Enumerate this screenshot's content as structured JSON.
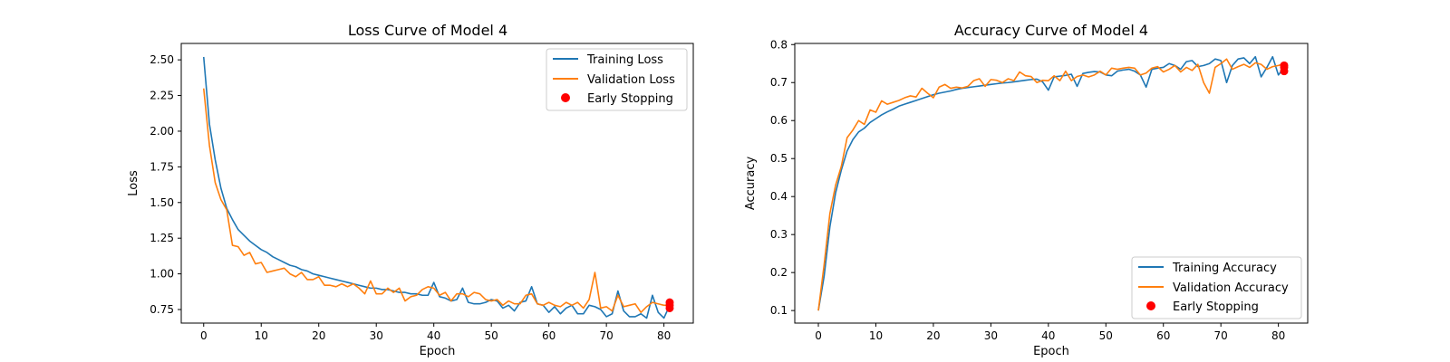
{
  "chart_data": [
    {
      "type": "line",
      "title": "Loss Curve of Model 4",
      "xlabel": "Epoch",
      "ylabel": "Loss",
      "xlim": [
        -3.9,
        85.1
      ],
      "ylim": [
        0.655,
        2.615
      ],
      "xticks": [
        0,
        10,
        20,
        30,
        40,
        50,
        60,
        70,
        80
      ],
      "xtick_labels": [
        "0",
        "10",
        "20",
        "30",
        "40",
        "50",
        "60",
        "70",
        "80"
      ],
      "yticks": [
        0.75,
        1.0,
        1.25,
        1.5,
        1.75,
        2.0,
        2.25,
        2.5
      ],
      "ytick_labels": [
        "0.75",
        "1.00",
        "1.25",
        "1.50",
        "1.75",
        "2.00",
        "2.25",
        "2.50"
      ],
      "legend_position": "top-right",
      "series": [
        {
          "name": "Training Loss",
          "color": "#1f77b4",
          "values": [
            2.52,
            2.05,
            1.8,
            1.6,
            1.46,
            1.38,
            1.31,
            1.27,
            1.23,
            1.2,
            1.17,
            1.15,
            1.12,
            1.1,
            1.08,
            1.06,
            1.05,
            1.03,
            1.02,
            1.0,
            0.99,
            0.98,
            0.97,
            0.96,
            0.95,
            0.94,
            0.93,
            0.92,
            0.91,
            0.9,
            0.9,
            0.89,
            0.89,
            0.88,
            0.87,
            0.87,
            0.86,
            0.86,
            0.85,
            0.85,
            0.94,
            0.84,
            0.83,
            0.81,
            0.82,
            0.9,
            0.8,
            0.79,
            0.79,
            0.8,
            0.82,
            0.81,
            0.76,
            0.78,
            0.74,
            0.8,
            0.81,
            0.91,
            0.79,
            0.78,
            0.73,
            0.77,
            0.72,
            0.76,
            0.78,
            0.72,
            0.72,
            0.78,
            0.77,
            0.75,
            0.7,
            0.72,
            0.88,
            0.74,
            0.7,
            0.7,
            0.72,
            0.69,
            0.85,
            0.73,
            0.69,
            0.78
          ]
        },
        {
          "name": "Validation Loss",
          "color": "#ff7f0e",
          "values": [
            2.3,
            1.9,
            1.64,
            1.52,
            1.45,
            1.2,
            1.19,
            1.13,
            1.15,
            1.07,
            1.08,
            1.01,
            1.02,
            1.03,
            1.04,
            1.0,
            0.98,
            1.01,
            0.96,
            0.96,
            0.98,
            0.92,
            0.92,
            0.91,
            0.93,
            0.91,
            0.93,
            0.9,
            0.86,
            0.95,
            0.86,
            0.86,
            0.9,
            0.87,
            0.9,
            0.81,
            0.84,
            0.85,
            0.89,
            0.91,
            0.9,
            0.85,
            0.87,
            0.81,
            0.86,
            0.86,
            0.84,
            0.87,
            0.86,
            0.82,
            0.81,
            0.82,
            0.78,
            0.81,
            0.79,
            0.79,
            0.85,
            0.86,
            0.79,
            0.78,
            0.8,
            0.78,
            0.77,
            0.8,
            0.78,
            0.8,
            0.76,
            0.82,
            1.01,
            0.76,
            0.77,
            0.74,
            0.85,
            0.77,
            0.78,
            0.79,
            0.73,
            0.77,
            0.8,
            0.79,
            0.78,
            0.78
          ]
        }
      ],
      "early_stopping": {
        "name": "Early Stopping",
        "color": "#ff0000",
        "points": [
          [
            81,
            0.8
          ],
          [
            81,
            0.78
          ],
          [
            81,
            0.76
          ]
        ]
      }
    },
    {
      "type": "line",
      "title": "Accuracy Curve of Model 4",
      "xlabel": "Epoch",
      "ylabel": "Accuracy",
      "xlim": [
        -4.1,
        85.1
      ],
      "ylim": [
        0.067,
        0.803
      ],
      "xticks": [
        0,
        10,
        20,
        30,
        40,
        50,
        60,
        70,
        80
      ],
      "xtick_labels": [
        "0",
        "10",
        "20",
        "30",
        "40",
        "50",
        "60",
        "70",
        "80"
      ],
      "yticks": [
        0.1,
        0.2,
        0.3,
        0.4,
        0.5,
        0.6,
        0.7,
        0.8
      ],
      "ytick_labels": [
        "0.1",
        "0.2",
        "0.3",
        "0.4",
        "0.5",
        "0.6",
        "0.7",
        "0.8"
      ],
      "legend_position": "bottom-right",
      "series": [
        {
          "name": "Training Accuracy",
          "color": "#1f77b4",
          "values": [
            0.1,
            0.19,
            0.32,
            0.41,
            0.47,
            0.52,
            0.55,
            0.57,
            0.58,
            0.595,
            0.605,
            0.615,
            0.623,
            0.63,
            0.638,
            0.643,
            0.648,
            0.653,
            0.658,
            0.663,
            0.668,
            0.672,
            0.675,
            0.678,
            0.682,
            0.685,
            0.687,
            0.689,
            0.691,
            0.693,
            0.695,
            0.697,
            0.699,
            0.7,
            0.702,
            0.704,
            0.706,
            0.708,
            0.709,
            0.702,
            0.68,
            0.715,
            0.717,
            0.719,
            0.722,
            0.69,
            0.724,
            0.727,
            0.729,
            0.728,
            0.72,
            0.718,
            0.73,
            0.733,
            0.735,
            0.73,
            0.72,
            0.688,
            0.735,
            0.738,
            0.74,
            0.75,
            0.745,
            0.735,
            0.755,
            0.758,
            0.742,
            0.745,
            0.75,
            0.762,
            0.758,
            0.7,
            0.745,
            0.762,
            0.765,
            0.75,
            0.768,
            0.715,
            0.74,
            0.768,
            0.72,
            0.74
          ]
        },
        {
          "name": "Validation Accuracy",
          "color": "#ff7f0e",
          "values": [
            0.1,
            0.22,
            0.355,
            0.43,
            0.48,
            0.555,
            0.575,
            0.6,
            0.59,
            0.628,
            0.622,
            0.652,
            0.643,
            0.648,
            0.653,
            0.66,
            0.665,
            0.662,
            0.685,
            0.672,
            0.66,
            0.688,
            0.695,
            0.685,
            0.688,
            0.686,
            0.69,
            0.705,
            0.71,
            0.69,
            0.708,
            0.706,
            0.7,
            0.71,
            0.705,
            0.728,
            0.718,
            0.716,
            0.7,
            0.706,
            0.705,
            0.718,
            0.705,
            0.73,
            0.705,
            0.716,
            0.72,
            0.715,
            0.72,
            0.73,
            0.72,
            0.738,
            0.735,
            0.738,
            0.74,
            0.738,
            0.72,
            0.725,
            0.738,
            0.742,
            0.728,
            0.735,
            0.745,
            0.728,
            0.74,
            0.732,
            0.748,
            0.7,
            0.672,
            0.74,
            0.75,
            0.762,
            0.735,
            0.742,
            0.748,
            0.74,
            0.752,
            0.748,
            0.735,
            0.742,
            0.745,
            0.75
          ]
        }
      ],
      "early_stopping": {
        "name": "Early Stopping",
        "color": "#ff0000",
        "points": [
          [
            81,
            0.745
          ],
          [
            81,
            0.74
          ],
          [
            81,
            0.73
          ]
        ]
      }
    }
  ]
}
